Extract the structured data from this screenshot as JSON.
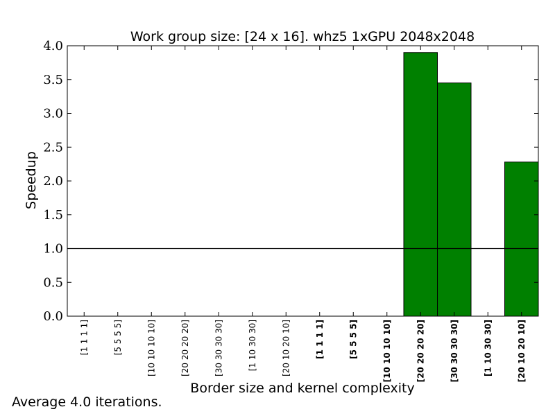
{
  "chart_data": {
    "type": "bar",
    "title": "Work group size: [24 x 16]. whz5 1xGPU 2048x2048",
    "xlabel": "Border size and kernel complexity",
    "ylabel": "Speedup",
    "ylim": [
      0,
      4.0
    ],
    "yticks": [
      "0.0",
      "0.5",
      "1.0",
      "1.5",
      "2.0",
      "2.5",
      "3.0",
      "3.5",
      "4.0"
    ],
    "reference_line": 1.0,
    "bar_color": "#008000",
    "categories": [
      "[1 1 1 1]",
      "[5 5 5 5]",
      "[10 10 10 10]",
      "[20 20 20 20]",
      "[30 30 30 30]",
      "[1 10 30 30]",
      "[20 10 20 10]",
      "[1 1 1 1]",
      "[5 5 5 5]",
      "[10 10 10 10]",
      "[20 20 20 20]",
      "[30 30 30 30]",
      "[1 10 30 30]",
      "[20 10 20 10]"
    ],
    "bold_categories_from_index": 7,
    "values": [
      0,
      0,
      0,
      0,
      0,
      0,
      0,
      0,
      0,
      0,
      3.9,
      3.45,
      0,
      2.28
    ],
    "grid": false
  },
  "footer": {
    "note": "Average 4.0 iterations."
  }
}
